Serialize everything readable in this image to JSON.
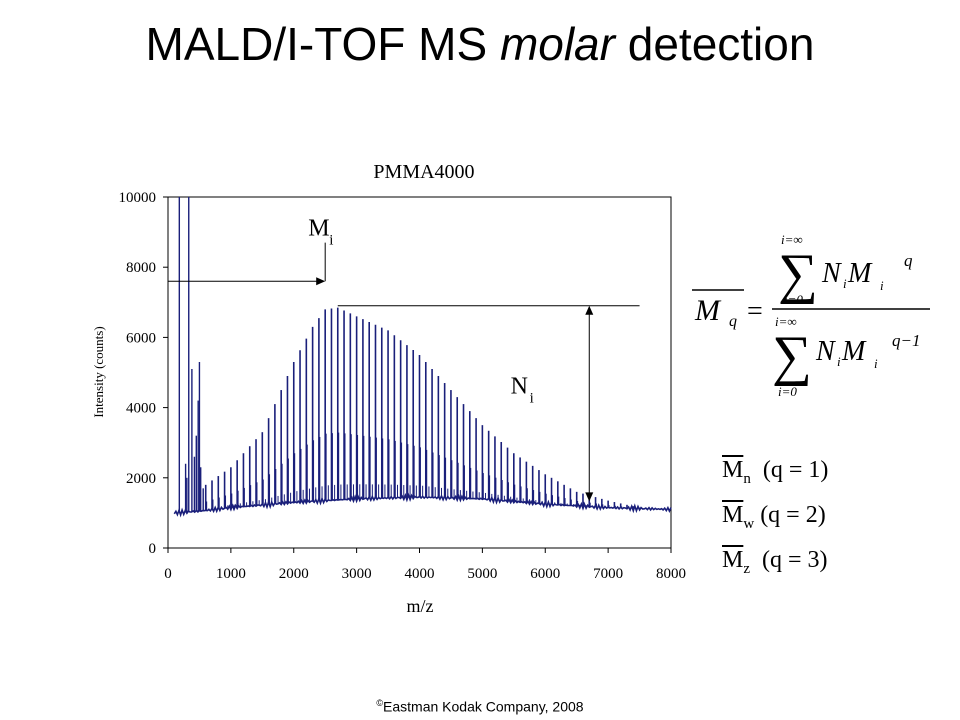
{
  "slide": {
    "title_main": "MALD/I-TOF MS ",
    "title_italic": "molar",
    "title_end": " detection",
    "copyright_symbol": "©",
    "copyright": "Eastman Kodak Company, 2008"
  },
  "chart_data": {
    "type": "line",
    "title": "PMMA4000",
    "xlabel": "m/z",
    "ylabel": "Intensity (counts)",
    "xlim": [
      0,
      8000
    ],
    "ylim": [
      0,
      10000
    ],
    "x_ticks": [
      0,
      1000,
      2000,
      3000,
      4000,
      5000,
      6000,
      7000,
      8000
    ],
    "y_ticks": [
      0,
      2000,
      4000,
      6000,
      8000,
      10000
    ],
    "grid": false,
    "series_color": "#1a1f7a",
    "baseline_points": [
      [
        100,
        1000
      ],
      [
        500,
        1050
      ],
      [
        1000,
        1150
      ],
      [
        2000,
        1300
      ],
      [
        3000,
        1400
      ],
      [
        4000,
        1450
      ],
      [
        5000,
        1400
      ],
      [
        6000,
        1250
      ],
      [
        7000,
        1150
      ],
      [
        8000,
        1100
      ]
    ],
    "low_mass_peaks": [
      [
        180,
        10000
      ],
      [
        330,
        10000
      ],
      [
        280,
        2400
      ],
      [
        300,
        2000
      ],
      [
        380,
        5100
      ],
      [
        420,
        2600
      ],
      [
        450,
        3200
      ],
      [
        480,
        4200
      ],
      [
        500,
        5300
      ],
      [
        520,
        2300
      ],
      [
        560,
        1700
      ]
    ],
    "peak_series_start": 600,
    "peak_spacing": 100,
    "peak_envelope": [
      [
        600,
        1800
      ],
      [
        1000,
        2300
      ],
      [
        1500,
        3300
      ],
      [
        2000,
        5300
      ],
      [
        2300,
        6300
      ],
      [
        2500,
        6800
      ],
      [
        2700,
        6850
      ],
      [
        3000,
        6600
      ],
      [
        3500,
        6200
      ],
      [
        4000,
        5500
      ],
      [
        4500,
        4500
      ],
      [
        5000,
        3500
      ],
      [
        5500,
        2700
      ],
      [
        6000,
        2100
      ],
      [
        6500,
        1600
      ],
      [
        7000,
        1350
      ],
      [
        7500,
        1150
      ]
    ],
    "annotations": {
      "mi_label": "M",
      "mi_sub": "i",
      "ni_label": "N",
      "ni_sub": "i",
      "mi_peak_x": 2500,
      "mi_level": 7600,
      "ni_peak_x": 2700,
      "ni_peak_y": 6900,
      "ni_arrow_x": 6700,
      "ni_line_end_x": 7500
    }
  },
  "formula": {
    "lhs": "M",
    "lhs_sub": "q",
    "sum_symbol": "∑",
    "upper_limit": "i=∞",
    "lower_limit": "i=0",
    "num_N": "N",
    "num_N_sub": "i",
    "num_M": "M",
    "num_M_sub": "i",
    "num_exp": "q",
    "den_exp": "q−1"
  },
  "moments": [
    {
      "sym": "M",
      "sub": "n",
      "text": "  (q = 1)"
    },
    {
      "sym": "M",
      "sub": "w",
      "text": " (q = 2)"
    },
    {
      "sym": "M",
      "sub": "z",
      "text": "  (q = 3)"
    }
  ]
}
